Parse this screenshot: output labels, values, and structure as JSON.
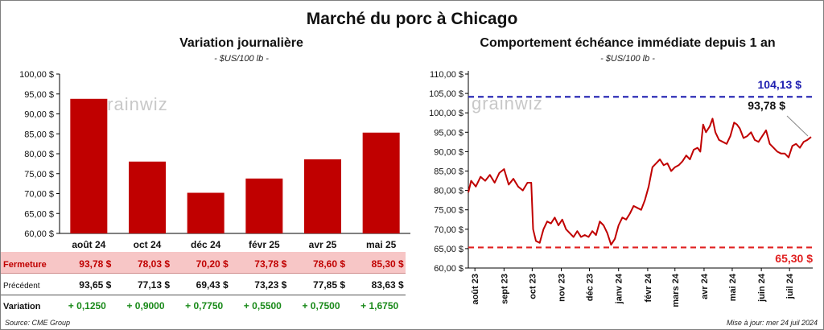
{
  "title": "Marché du porc à Chicago",
  "left": {
    "title": "Variation  journalière",
    "unit": "- $US/100 lb -",
    "watermark": "grainwiz",
    "table_labels": [
      "Fermeture",
      "Précédent",
      "Variation"
    ],
    "fermeture": [
      "93,78  $",
      "78,03  $",
      "70,20  $",
      "73,78  $",
      "78,60  $",
      "85,30  $"
    ],
    "precedent": [
      "93,65  $",
      "77,13  $",
      "69,43  $",
      "73,23  $",
      "77,85  $",
      "83,63  $"
    ],
    "variation": [
      "+ 0,1250",
      "+ 0,9000",
      "+ 0,7750",
      "+ 0,5500",
      "+ 0,7500",
      "+ 1,6750"
    ]
  },
  "right": {
    "title": "Comportement  échéance immédiate depuis 1 an",
    "unit": "- $US/100 lb -",
    "watermark": "grainwiz",
    "max_label": "104,13 $",
    "last_label": "93,78 $",
    "min_label": "65,30 $"
  },
  "footer": {
    "source": "Source: CME Group",
    "updated": "Mise à jour: mer 24 juil 2024"
  },
  "colors": {
    "bar": "#c00000",
    "line": "#c00000",
    "max_line": "#1f1fb0",
    "min_line": "#e02020",
    "row_highlight": "#f7c6c6",
    "positive": "#1a8a1a"
  },
  "chart_data": [
    {
      "type": "bar",
      "title": "Variation  journalière",
      "ylabel": "- $US/100 lb -",
      "categories": [
        "août 24",
        "oct 24",
        "déc 24",
        "févr 25",
        "avr 25",
        "mai 25"
      ],
      "values": [
        93.78,
        78.03,
        70.2,
        73.78,
        78.6,
        85.3
      ],
      "ylim": [
        60,
        100
      ],
      "yticks": [
        "60,00 $",
        "65,00 $",
        "70,00 $",
        "75,00 $",
        "80,00 $",
        "85,00 $",
        "90,00 $",
        "95,00 $",
        "100,00 $"
      ],
      "grid": false
    },
    {
      "type": "line",
      "title": "Comportement  échéance immédiate depuis 1 an",
      "ylabel": "- $US/100 lb -",
      "ylim": [
        60,
        110
      ],
      "yticks": [
        "60,00 $",
        "65,00 $",
        "70,00 $",
        "75,00 $",
        "80,00 $",
        "85,00 $",
        "90,00 $",
        "95,00 $",
        "100,00 $",
        "105,00 $",
        "110,00 $"
      ],
      "xticks": [
        "août 23",
        "sept 23",
        "oct 23",
        "nov 23",
        "déc 23",
        "janv 24",
        "févr 24",
        "mars 24",
        "avr 24",
        "mai 24",
        "juin 24",
        "juil 24"
      ],
      "x": [
        "2023-07-25",
        "2023-07-28",
        "2023-08-02",
        "2023-08-07",
        "2023-08-12",
        "2023-08-17",
        "2023-08-22",
        "2023-08-27",
        "2023-09-01",
        "2023-09-06",
        "2023-09-11",
        "2023-09-16",
        "2023-09-21",
        "2023-09-26",
        "2023-09-30",
        "2023-10-02",
        "2023-10-05",
        "2023-10-09",
        "2023-10-13",
        "2023-10-17",
        "2023-10-21",
        "2023-10-25",
        "2023-10-29",
        "2023-11-02",
        "2023-11-06",
        "2023-11-10",
        "2023-11-14",
        "2023-11-18",
        "2023-11-22",
        "2023-11-26",
        "2023-11-30",
        "2023-12-04",
        "2023-12-08",
        "2023-12-12",
        "2023-12-16",
        "2023-12-20",
        "2023-12-24",
        "2023-12-28",
        "2024-01-01",
        "2024-01-05",
        "2024-01-09",
        "2024-01-13",
        "2024-01-17",
        "2024-01-21",
        "2024-01-25",
        "2024-01-29",
        "2024-02-02",
        "2024-02-06",
        "2024-02-10",
        "2024-02-14",
        "2024-02-18",
        "2024-02-22",
        "2024-02-26",
        "2024-03-01",
        "2024-03-05",
        "2024-03-09",
        "2024-03-13",
        "2024-03-17",
        "2024-03-21",
        "2024-03-25",
        "2024-03-28",
        "2024-03-31",
        "2024-04-03",
        "2024-04-07",
        "2024-04-10",
        "2024-04-13",
        "2024-04-17",
        "2024-04-21",
        "2024-04-25",
        "2024-04-29",
        "2024-05-03",
        "2024-05-06",
        "2024-05-09",
        "2024-05-13",
        "2024-05-17",
        "2024-05-21",
        "2024-05-25",
        "2024-05-29",
        "2024-06-02",
        "2024-06-06",
        "2024-06-10",
        "2024-06-14",
        "2024-06-18",
        "2024-06-22",
        "2024-06-26",
        "2024-06-30",
        "2024-07-04",
        "2024-07-08",
        "2024-07-12",
        "2024-07-16",
        "2024-07-20",
        "2024-07-24"
      ],
      "series": [
        {
          "values": [
            79.5,
            82.5,
            81.0,
            83.5,
            82.5,
            84.0,
            82.0,
            84.5,
            85.5,
            81.5,
            83.0,
            81.0,
            80.0,
            82.0,
            82.0,
            70.0,
            67.0,
            66.5,
            70.0,
            72.0,
            71.5,
            73.0,
            71.0,
            72.5,
            70.0,
            69.0,
            68.0,
            69.5,
            68.0,
            68.5,
            68.0,
            69.5,
            68.5,
            72.0,
            71.0,
            69.0,
            66.0,
            67.5,
            71.0,
            73.0,
            72.5,
            74.0,
            76.0,
            75.5,
            75.0,
            77.5,
            81.0,
            86.0,
            87.0,
            88.0,
            86.5,
            87.0,
            85.0,
            86.0,
            86.5,
            87.5,
            89.0,
            88.0,
            90.5,
            91.0,
            90.0,
            97.0,
            95.0,
            96.5,
            98.5,
            95.0,
            93.0,
            92.5,
            92.0,
            94.0,
            97.5,
            97.0,
            96.0,
            93.5,
            94.0,
            95.0,
            93.0,
            92.5,
            94.0,
            95.5,
            92.0,
            91.0,
            90.0,
            89.5,
            89.5,
            88.5,
            91.5,
            92.0,
            91.0,
            92.5,
            93.0,
            93.78
          ]
        }
      ],
      "annotations": [
        "104,13 $",
        "93,78 $",
        "65,30 $"
      ],
      "reference_lines": {
        "max": 104.13,
        "min": 65.3
      },
      "grid": false
    }
  ]
}
